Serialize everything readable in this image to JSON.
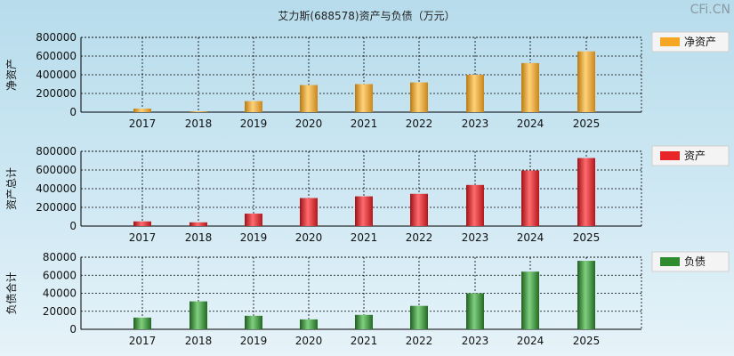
{
  "title": "艾力斯(688578)资产与负债（万元）",
  "watermark": "CFi.CN",
  "chart_data": [
    {
      "type": "bar",
      "ylabel": "净资产",
      "legend": "净资产",
      "color": "#f5a623",
      "categories": [
        "2017",
        "2018",
        "2019",
        "2020",
        "2021",
        "2022",
        "2023",
        "2024",
        "2025"
      ],
      "values": [
        38000,
        8000,
        118000,
        290000,
        300000,
        318000,
        400000,
        525000,
        650000
      ],
      "ylim": [
        0,
        800000
      ],
      "yticks": [
        "800000",
        "600000",
        "400000",
        "200000",
        "0"
      ],
      "grid": true
    },
    {
      "type": "bar",
      "ylabel": "资产总计",
      "legend": "资产",
      "color": "#e8262a",
      "categories": [
        "2017",
        "2018",
        "2019",
        "2020",
        "2021",
        "2022",
        "2023",
        "2024",
        "2025"
      ],
      "values": [
        50000,
        40000,
        133000,
        300000,
        318000,
        345000,
        440000,
        595000,
        728000
      ],
      "ylim": [
        0,
        800000
      ],
      "yticks": [
        "800000",
        "600000",
        "400000",
        "200000",
        "0"
      ],
      "grid": true
    },
    {
      "type": "bar",
      "ylabel": "负债合计",
      "legend": "负债",
      "color": "#2e8b2e",
      "categories": [
        "2017",
        "2018",
        "2019",
        "2020",
        "2021",
        "2022",
        "2023",
        "2024",
        "2025"
      ],
      "values": [
        13000,
        31000,
        15000,
        11000,
        16000,
        26000,
        40000,
        64000,
        76000
      ],
      "ylim": [
        0,
        80000
      ],
      "yticks": [
        "80000",
        "60000",
        "40000",
        "20000",
        "0"
      ],
      "grid": true
    }
  ]
}
